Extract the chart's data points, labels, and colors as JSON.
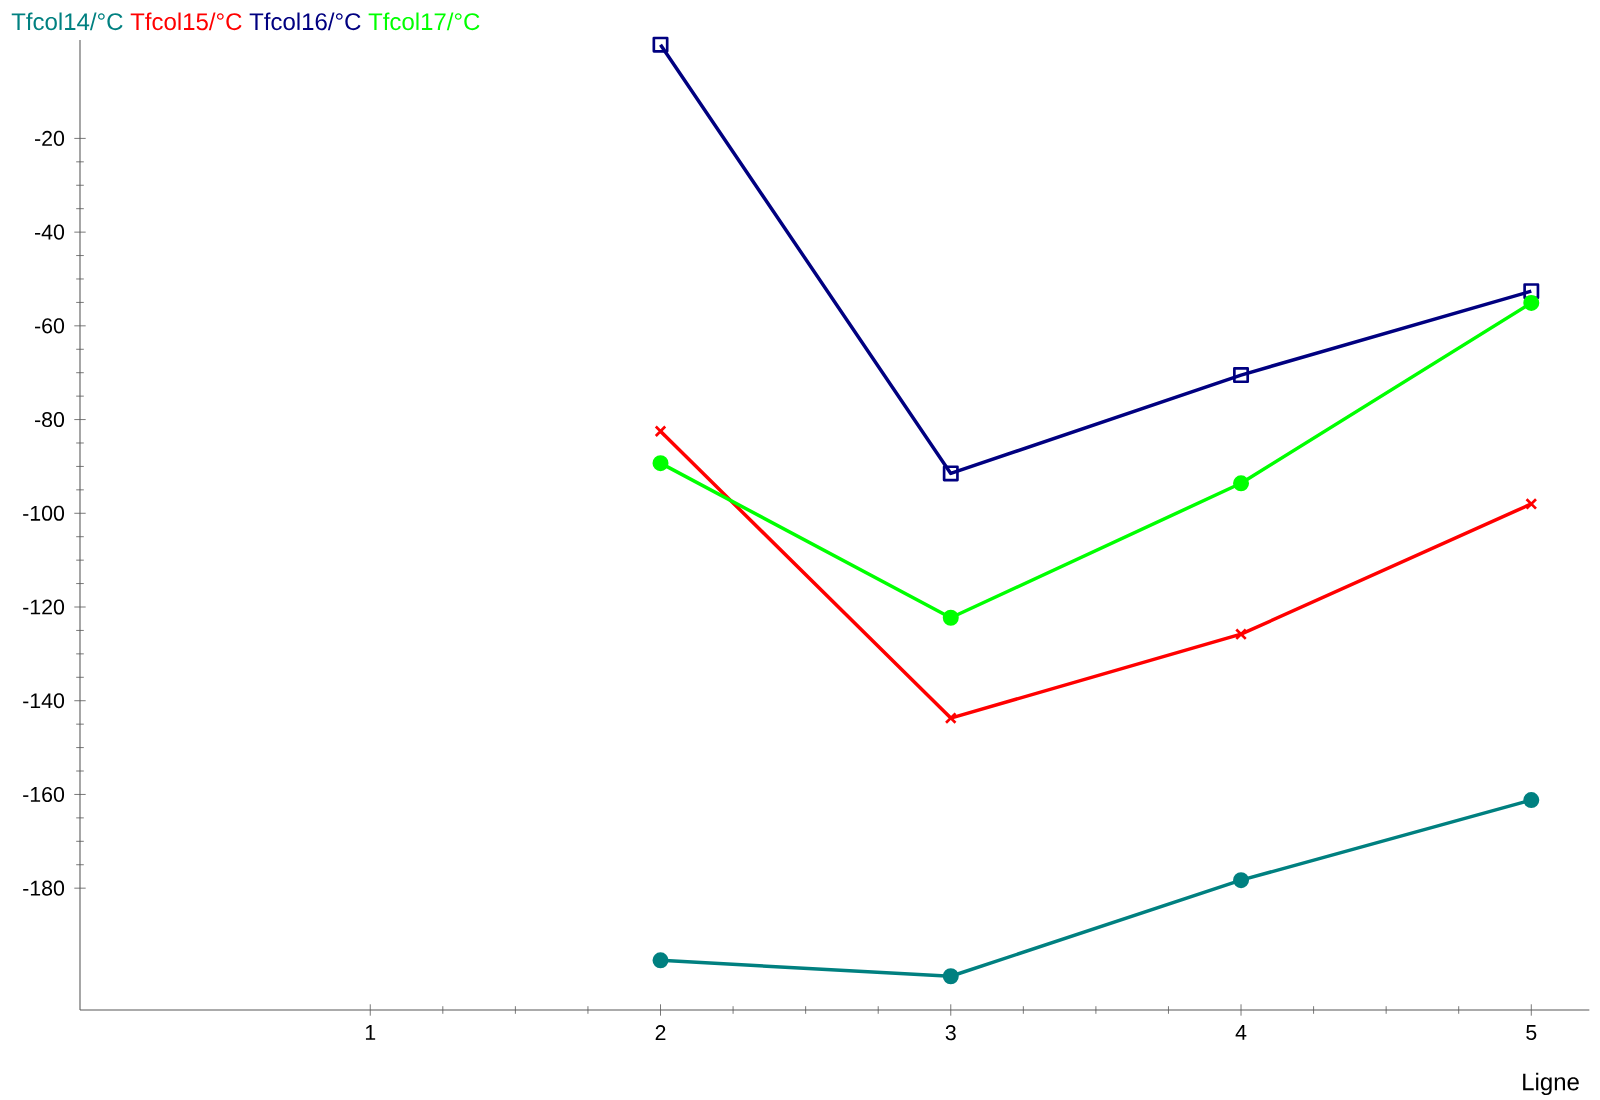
{
  "chart_data": {
    "type": "line",
    "xlabel": "Ligne",
    "x": [
      2,
      3,
      4,
      5
    ],
    "series": [
      {
        "name": "Tfcol14/°C",
        "color": "#008080",
        "marker": "circle",
        "values": [
          -195.4,
          -198.8,
          -178.3,
          -161.2
        ]
      },
      {
        "name": "Tfcol15/°C",
        "color": "#ff0000",
        "marker": "cross",
        "values": [
          -82.5,
          -143.7,
          -125.8,
          -98
        ]
      },
      {
        "name": "Tfcol16/°C",
        "color": "#000080",
        "marker": "square",
        "values": [
          0,
          -91.5,
          -70.5,
          -52.6
        ]
      },
      {
        "name": "Tfcol17/°C",
        "color": "#00ff00",
        "marker": "circle",
        "values": [
          -89.3,
          -122.3,
          -93.6,
          -55.1
        ]
      }
    ],
    "xlim": [
      0,
      5.2
    ],
    "ylim": [
      -206,
      1
    ],
    "xticks": [
      1,
      2,
      3,
      4,
      5
    ],
    "yticks": [
      -180,
      -160,
      -140,
      -120,
      -100,
      -80,
      -60,
      -40,
      -20
    ],
    "legend": "top left",
    "grid": false,
    "line_style": "solid"
  }
}
